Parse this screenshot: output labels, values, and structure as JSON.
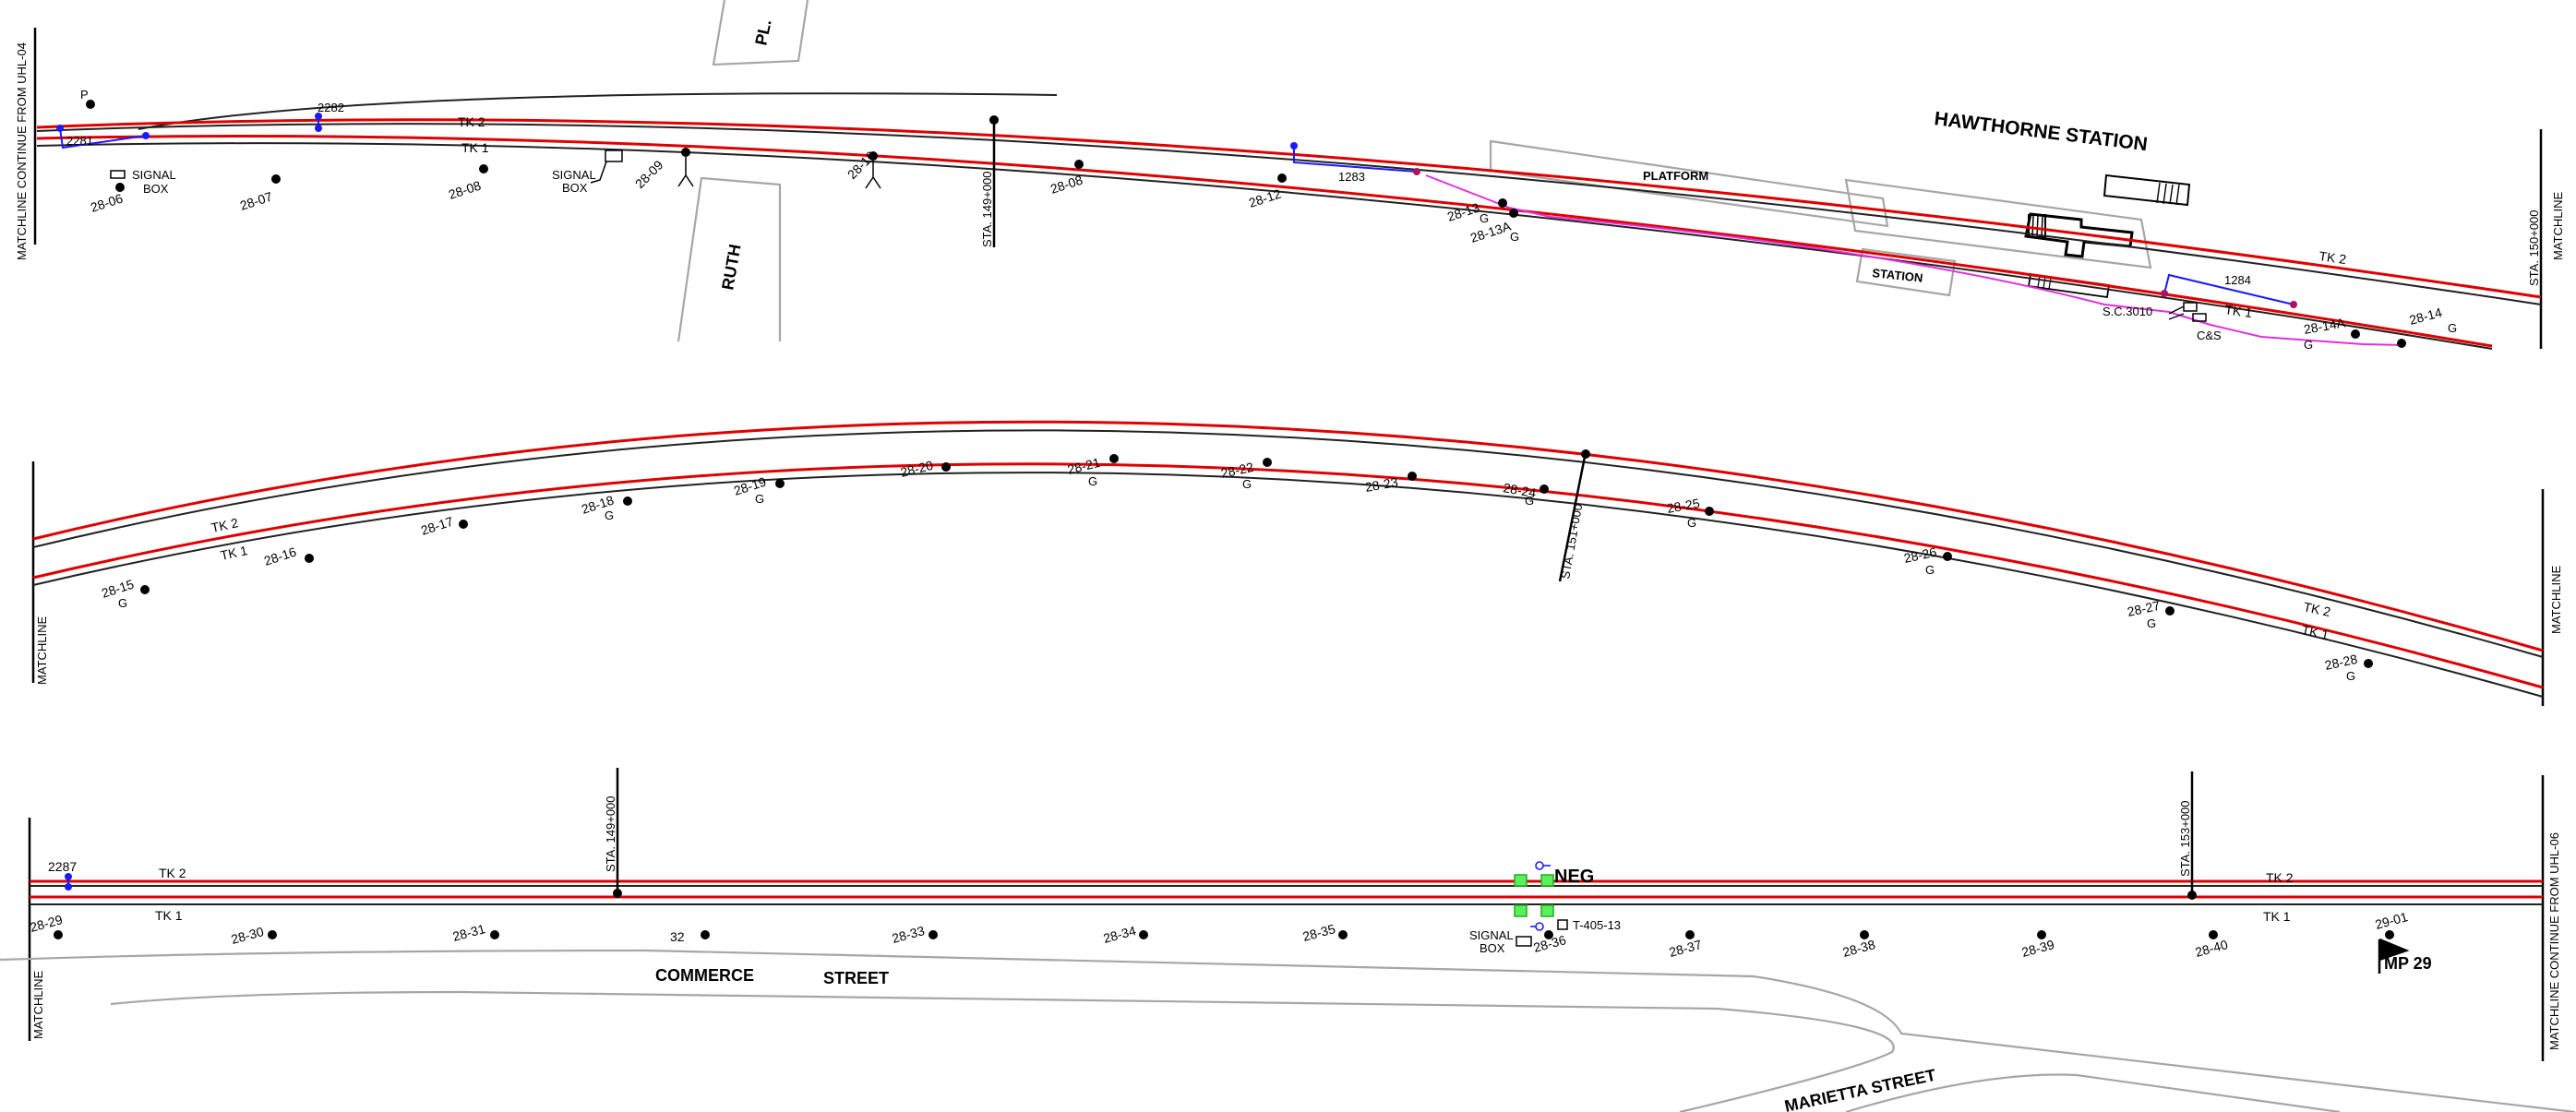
{
  "sheet": {
    "matchlines": {
      "top_left": "MATCHLINE CONTINUE FROM UHL-04",
      "top_right": "MATCHLINE",
      "middle_left": "MATCHLINE",
      "middle_right": "MATCHLINE",
      "bottom_left": "MATCHLINE",
      "bottom_right": "MATCHLINE CONTINUE FROM UHL-06"
    }
  },
  "streets": {
    "pl": "PL.",
    "ruth": "RUTH",
    "commerce": "COMMERCE",
    "street": "STREET",
    "marietta": "MARIETTA STREET"
  },
  "station": {
    "name": "HAWTHORNE STATION",
    "platform": "PLATFORM",
    "building": "STATION"
  },
  "tracks": {
    "tk1": "TK 1",
    "tk2": "TK 2"
  },
  "stations": {
    "sta_149_top": "STA. 149+000",
    "sta_150": "STA. 150+000",
    "sta_151": "STA. 151+000",
    "sta_149_bottom": "STA. 149+000",
    "sta_153": "STA. 153+000"
  },
  "equipment": {
    "p_top": "P",
    "switch_2281": "2281",
    "switch_2282": "2282",
    "switch_1283": "1283",
    "switch_1284": "1284",
    "switch_2287": "2287",
    "signal_box": "SIGNAL\nBOX",
    "signal_box_1_l1": "SIGNAL",
    "signal_box_1_l2": "BOX",
    "signal_box_2_l1": "SIGNAL",
    "signal_box_2_l2": "BOX",
    "signal_box_3_l1": "SIGNAL",
    "signal_box_3_l2": "BOX",
    "sc3010": "S.C.3010",
    "cs": "C&S",
    "neg": "NEG",
    "t405": "T-405-13",
    "mp": "MP 29",
    "g": "G"
  },
  "poles_top": [
    "28-06",
    "28-07",
    "28-08",
    "28-09",
    "28-10",
    "28-08",
    "28-12",
    "28-13",
    "28-13A",
    "28-14",
    "28-14A"
  ],
  "poles_middle": [
    "28-15",
    "28-16",
    "28-17",
    "28-18",
    "28-19",
    "28-20",
    "28-21",
    "28-22",
    "28-23",
    "28-24",
    "28-25",
    "28-26",
    "28-27",
    "28-28"
  ],
  "poles_bottom": [
    "28-29",
    "28-30",
    "28-31",
    "32",
    "28-33",
    "28-34",
    "28-35",
    "28-36",
    "28-37",
    "28-38",
    "28-39",
    "28-40",
    "29-01"
  ]
}
